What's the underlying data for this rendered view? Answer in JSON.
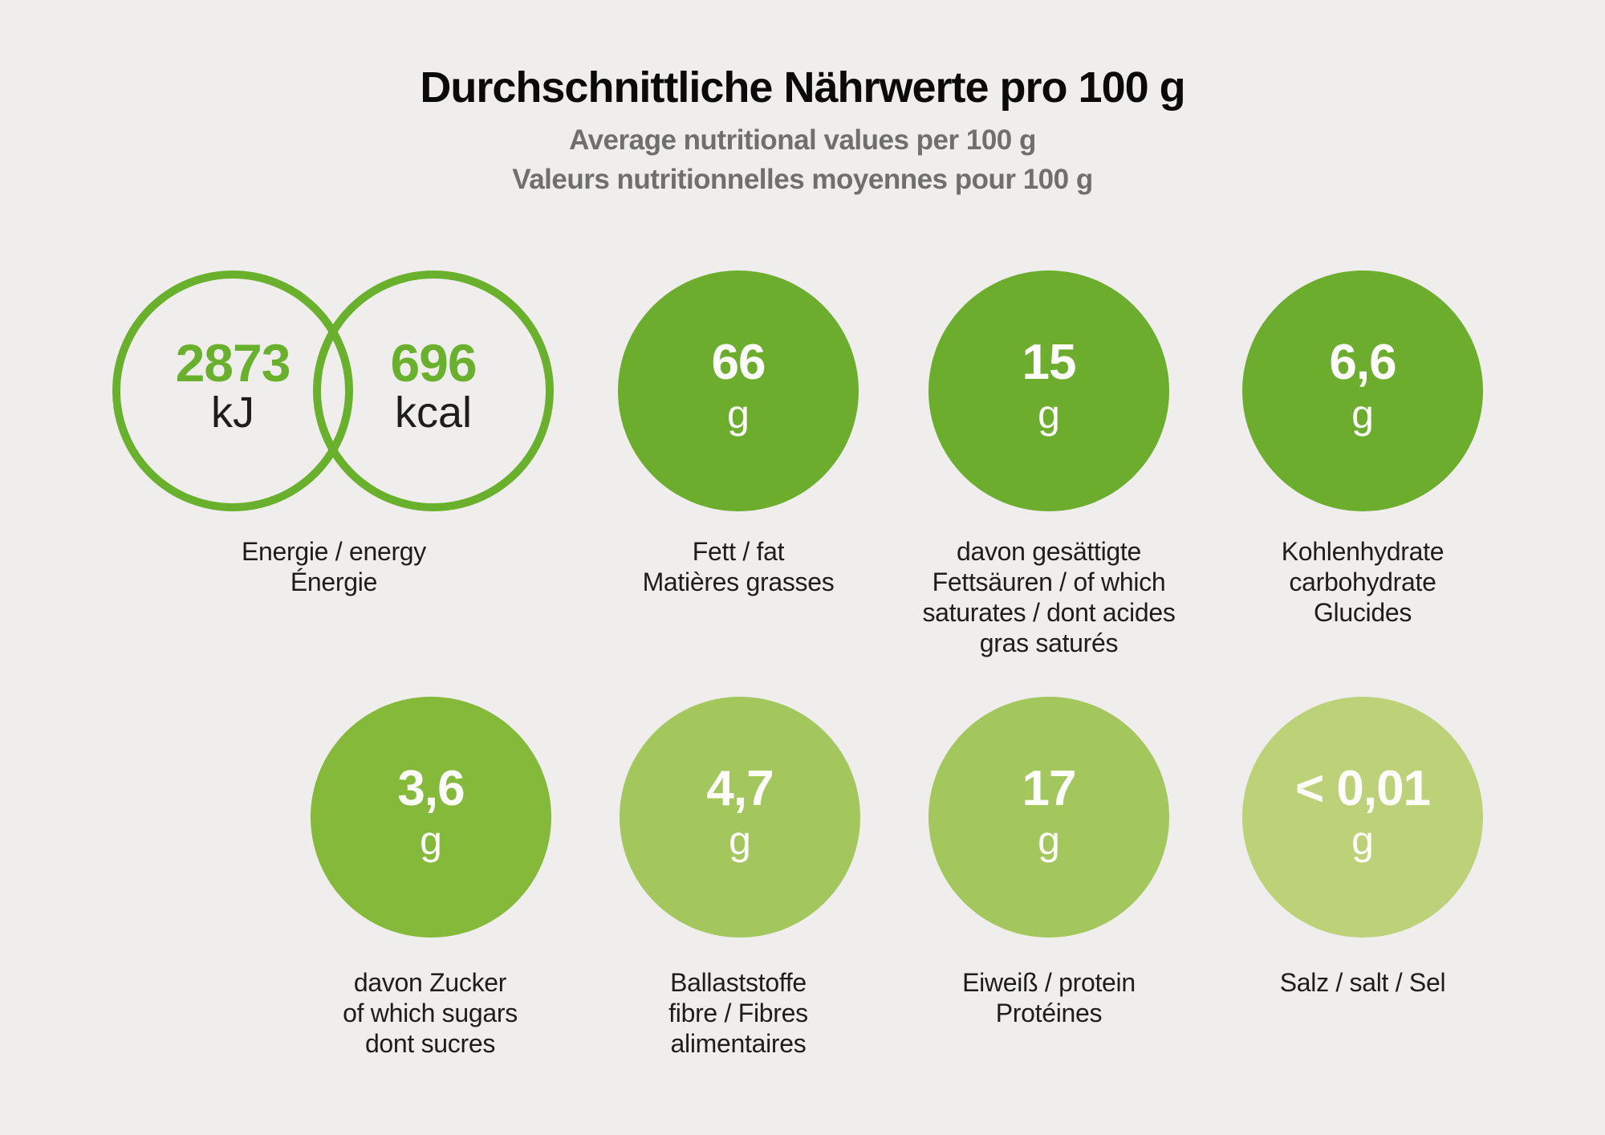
{
  "header": {
    "title": "Durchschnittliche Nährwerte pro 100 g",
    "subtitle_en": "Average nutritional values per 100 g",
    "subtitle_fr": "Valeurs nutritionnelles moyennes pour 100 g"
  },
  "colors": {
    "background": "#efeeec",
    "ring_green": "#69b02c",
    "green_dark": "#6cad2e",
    "green_mid": "#85b93a",
    "green_light": "#a3c75c",
    "green_pale": "#bdd178",
    "subtitle_gray": "#6f6f6e",
    "text_dark": "#1d1d1b"
  },
  "energy": {
    "kj": {
      "value": "2873",
      "unit": "kJ"
    },
    "kcal": {
      "value": "696",
      "unit": "kcal"
    },
    "label": "Energie / energy\nÉnergie"
  },
  "nutrients": [
    {
      "id": "fat",
      "value": "66",
      "unit": "g",
      "color": "#6cad2e",
      "label": "Fett / fat\nMatières grasses"
    },
    {
      "id": "saturates",
      "value": "15",
      "unit": "g",
      "color": "#6cad2e",
      "label": "davon gesättigte\nFettsäuren / of which\nsaturates / dont acides\ngras saturés"
    },
    {
      "id": "carbs",
      "value": "6,6",
      "unit": "g",
      "color": "#6cad2e",
      "label": "Kohlenhydrate\ncarbohydrate\nGlucides"
    },
    {
      "id": "sugars",
      "value": "3,6",
      "unit": "g",
      "color": "#85b93a",
      "label": "davon Zucker\nof which sugars\ndont sucres"
    },
    {
      "id": "fibre",
      "value": "4,7",
      "unit": "g",
      "color": "#a3c75c",
      "label": "Ballaststoffe\nfibre / Fibres\nalimentaires"
    },
    {
      "id": "protein",
      "value": "17",
      "unit": "g",
      "color": "#a3c75c",
      "label": "Eiweiß / protein\nProtéines"
    },
    {
      "id": "salt",
      "value": "< 0,01",
      "unit": "g",
      "color": "#bdd178",
      "label": "Salz / salt / Sel"
    }
  ],
  "chart_data": {
    "type": "table",
    "title": "Durchschnittliche Nährwerte pro 100 g",
    "subtitles": [
      "Average nutritional values per 100 g",
      "Valeurs nutritionnelles moyennes pour 100 g"
    ],
    "columns": [
      "nutrient",
      "value_per_100g"
    ],
    "rows": [
      {
        "nutrient": "Energie / energy / Énergie",
        "value_per_100g": "2873 kJ / 696 kcal"
      },
      {
        "nutrient": "Fett / fat / Matières grasses",
        "value_per_100g": "66 g"
      },
      {
        "nutrient": "davon gesättigte Fettsäuren / of which saturates / dont acides gras saturés",
        "value_per_100g": "15 g"
      },
      {
        "nutrient": "Kohlenhydrate / carbohydrate / Glucides",
        "value_per_100g": "6,6 g"
      },
      {
        "nutrient": "davon Zucker / of which sugars / dont sucres",
        "value_per_100g": "3,6 g"
      },
      {
        "nutrient": "Ballaststoffe / fibre / Fibres alimentaires",
        "value_per_100g": "4,7 g"
      },
      {
        "nutrient": "Eiweiß / protein / Protéines",
        "value_per_100g": "17 g"
      },
      {
        "nutrient": "Salz / salt / Sel",
        "value_per_100g": "< 0,01 g"
      }
    ]
  }
}
